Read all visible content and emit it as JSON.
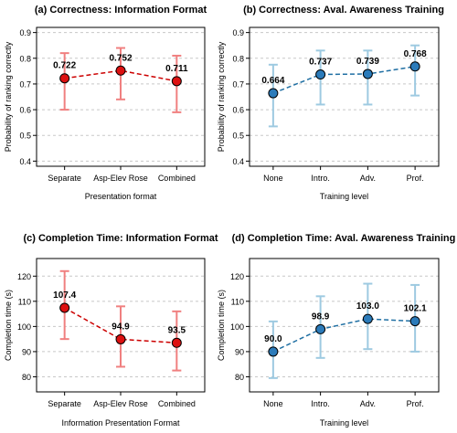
{
  "chart_data": [
    {
      "type": "line",
      "title": "(a) Correctness: Information Format",
      "xlabel": "Presentation format",
      "ylabel": "Probability of ranking correctly",
      "categories": [
        "Separate",
        "Asp-Elev Rose",
        "Combined"
      ],
      "values": [
        0.722,
        0.752,
        0.711
      ],
      "value_labels": [
        "0.722",
        "0.752",
        "0.711"
      ],
      "error_low": [
        0.6,
        0.64,
        0.59
      ],
      "error_high": [
        0.82,
        0.84,
        0.81
      ],
      "ylim": [
        0.38,
        0.92
      ],
      "yticks": [
        0.4,
        0.5,
        0.6,
        0.7,
        0.8,
        0.9
      ],
      "ytick_labels": [
        "0.4",
        "0.5",
        "0.6",
        "0.7",
        "0.8",
        "0.9"
      ],
      "grid": true,
      "color": "#cc0000",
      "error_color": "#f08080",
      "marker_fill": "#dd1111",
      "line_style": "dashed"
    },
    {
      "type": "line",
      "title": "(b) Correctness: Aval. Awareness Training",
      "xlabel": "Training level",
      "ylabel": "Probability of ranking correctly",
      "categories": [
        "None",
        "Intro.",
        "Adv.",
        "Prof."
      ],
      "values": [
        0.664,
        0.737,
        0.739,
        0.768
      ],
      "value_labels": [
        "0.664",
        "0.737",
        "0.739",
        "0.768"
      ],
      "error_low": [
        0.535,
        0.62,
        0.62,
        0.655
      ],
      "error_high": [
        0.775,
        0.83,
        0.83,
        0.85
      ],
      "ylim": [
        0.38,
        0.92
      ],
      "yticks": [
        0.4,
        0.5,
        0.6,
        0.7,
        0.8,
        0.9
      ],
      "ytick_labels": [
        "0.4",
        "0.5",
        "0.6",
        "0.7",
        "0.8",
        "0.9"
      ],
      "grid": true,
      "color": "#1f6fa3",
      "error_color": "#9ecae1",
      "marker_fill": "#2b7bba",
      "line_style": "dashed"
    },
    {
      "type": "line",
      "title": "(c) Completion Time: Information Format",
      "xlabel": "Information Presentation Format",
      "ylabel": "Completion time (s)",
      "categories": [
        "Separate",
        "Asp-Elev Rose",
        "Combined"
      ],
      "values": [
        107.4,
        94.9,
        93.5
      ],
      "value_labels": [
        "107.4",
        "94.9",
        "93.5"
      ],
      "error_low": [
        95,
        84,
        82.5
      ],
      "error_high": [
        122,
        108,
        106
      ],
      "ylim": [
        74,
        127
      ],
      "yticks": [
        80,
        90,
        100,
        110,
        120
      ],
      "ytick_labels": [
        "80",
        "90",
        "100",
        "110",
        "120"
      ],
      "grid": true,
      "color": "#cc0000",
      "error_color": "#f08080",
      "marker_fill": "#dd1111",
      "line_style": "dashed"
    },
    {
      "type": "line",
      "title": "(d) Completion Time: Aval. Awareness Training",
      "xlabel": "Training level",
      "ylabel": "Completion time (s)",
      "categories": [
        "None",
        "Intro.",
        "Adv.",
        "Prof."
      ],
      "values": [
        90.0,
        98.9,
        103.0,
        102.1
      ],
      "value_labels": [
        "90.0",
        "98.9",
        "103.0",
        "102.1"
      ],
      "error_low": [
        79.5,
        87.5,
        91,
        90
      ],
      "error_high": [
        102,
        112,
        117,
        116.5
      ],
      "ylim": [
        74,
        127
      ],
      "yticks": [
        80,
        90,
        100,
        110,
        120
      ],
      "ytick_labels": [
        "80",
        "90",
        "100",
        "110",
        "120"
      ],
      "grid": true,
      "color": "#1f6fa3",
      "error_color": "#9ecae1",
      "marker_fill": "#2b7bba",
      "line_style": "dashed"
    }
  ]
}
